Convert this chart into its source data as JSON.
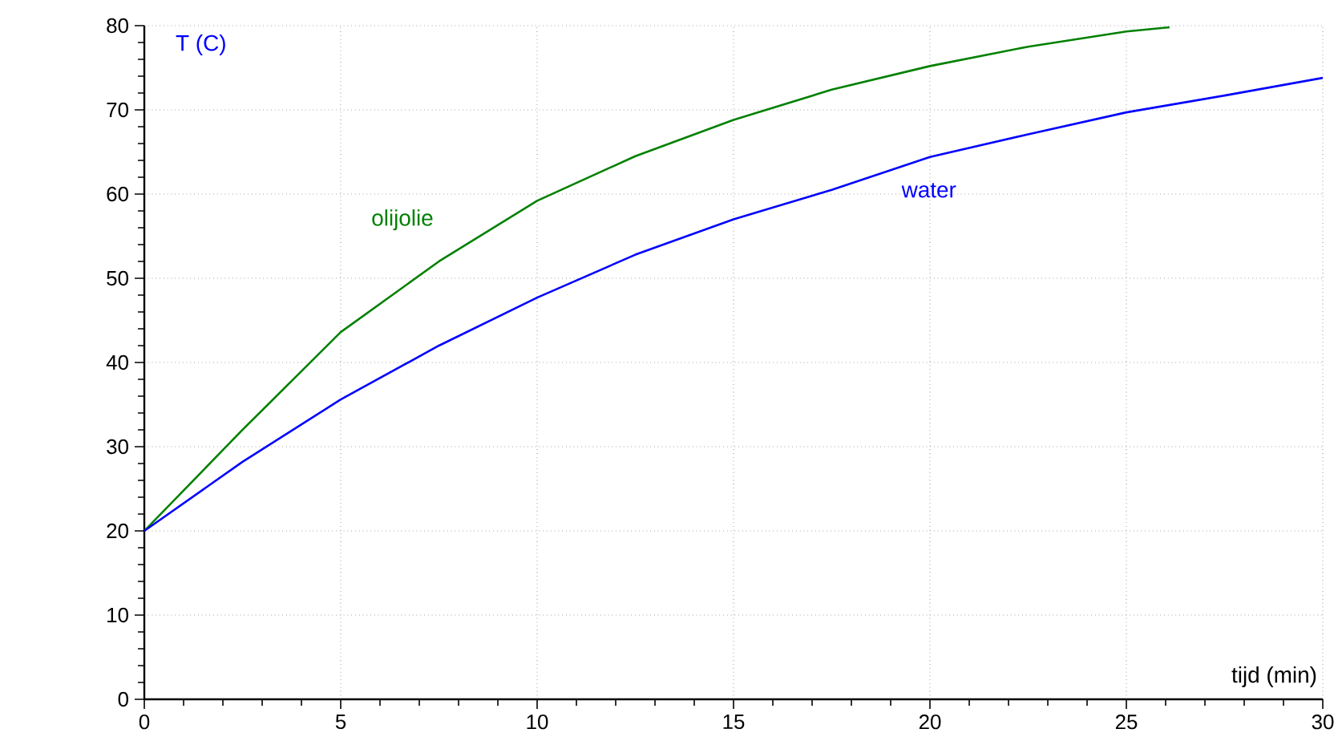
{
  "chart_data": {
    "type": "line",
    "xlabel": "tijd (min)",
    "ylabel": "T (C)",
    "xlim": [
      0,
      30
    ],
    "ylim": [
      0,
      80
    ],
    "xticks": [
      0,
      5,
      10,
      15,
      20,
      25,
      30
    ],
    "yticks": [
      0,
      10,
      20,
      30,
      40,
      50,
      60,
      70,
      80
    ],
    "grid": true,
    "legend": false,
    "marker": "none",
    "line_style": "solid",
    "series": [
      {
        "name": "olijolie",
        "color": "#008000",
        "x": [
          0,
          2.5,
          5,
          7.5,
          10,
          12.5,
          15,
          17.5,
          20,
          22.5,
          25,
          26.1
        ],
        "values": [
          20,
          32,
          43.6,
          52,
          59.2,
          64.5,
          68.8,
          72.4,
          75.2,
          77.5,
          79.3,
          79.8
        ]
      },
      {
        "name": "water",
        "color": "#0000ff",
        "x": [
          0,
          2.5,
          5,
          7.5,
          10,
          12.5,
          15,
          17.5,
          20,
          22.5,
          25,
          27.5,
          30
        ],
        "values": [
          20,
          28.2,
          35.6,
          42,
          47.7,
          52.8,
          57,
          60.5,
          64.4,
          67.1,
          69.7,
          71.7,
          73.8
        ]
      }
    ]
  }
}
